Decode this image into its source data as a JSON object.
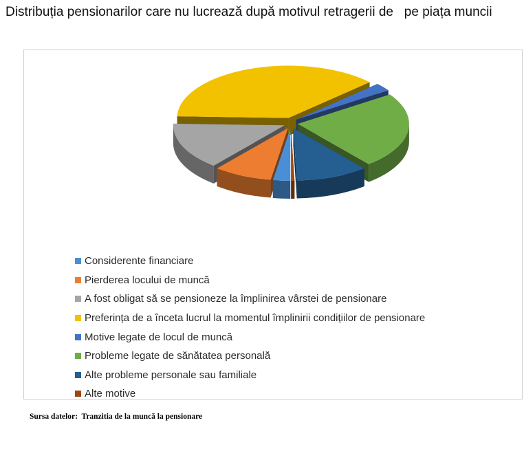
{
  "chart_data": {
    "type": "pie",
    "title": "Distribuția pensionarilor care nu lucrează după motivul retragerii de   pe piața muncii",
    "legend_position": "bottom-left",
    "slices": [
      {
        "label": "Considerente financiare",
        "value": 2.5,
        "color": "#4a8fd6"
      },
      {
        "label": "Pierderea locului de muncă",
        "value": 8.5,
        "color": "#ed7d31"
      },
      {
        "label": "A fost obligat să se pensioneze la împlinirea vârstei de pensionare",
        "value": 14.5,
        "color": "#a5a5a5"
      },
      {
        "label": "Preferința de a înceta lucrul la momentul împlinirii condițiilor de pensionare",
        "value": 37.5,
        "color": "#f2c200"
      },
      {
        "label": "Motive legate de locul de muncă",
        "value": 2.5,
        "color": "#4472c4"
      },
      {
        "label": "Probleme legate de sănătatea personală",
        "value": 23.5,
        "color": "#70ad47"
      },
      {
        "label": "Alte probleme personale sau familiale",
        "value": 10.5,
        "color": "#255e91"
      },
      {
        "label": "Alte motive",
        "value": 0.5,
        "color": "#9e480e"
      }
    ]
  },
  "source_note": "Sursa datelor:  Tranzitia de la muncă la pensionare"
}
